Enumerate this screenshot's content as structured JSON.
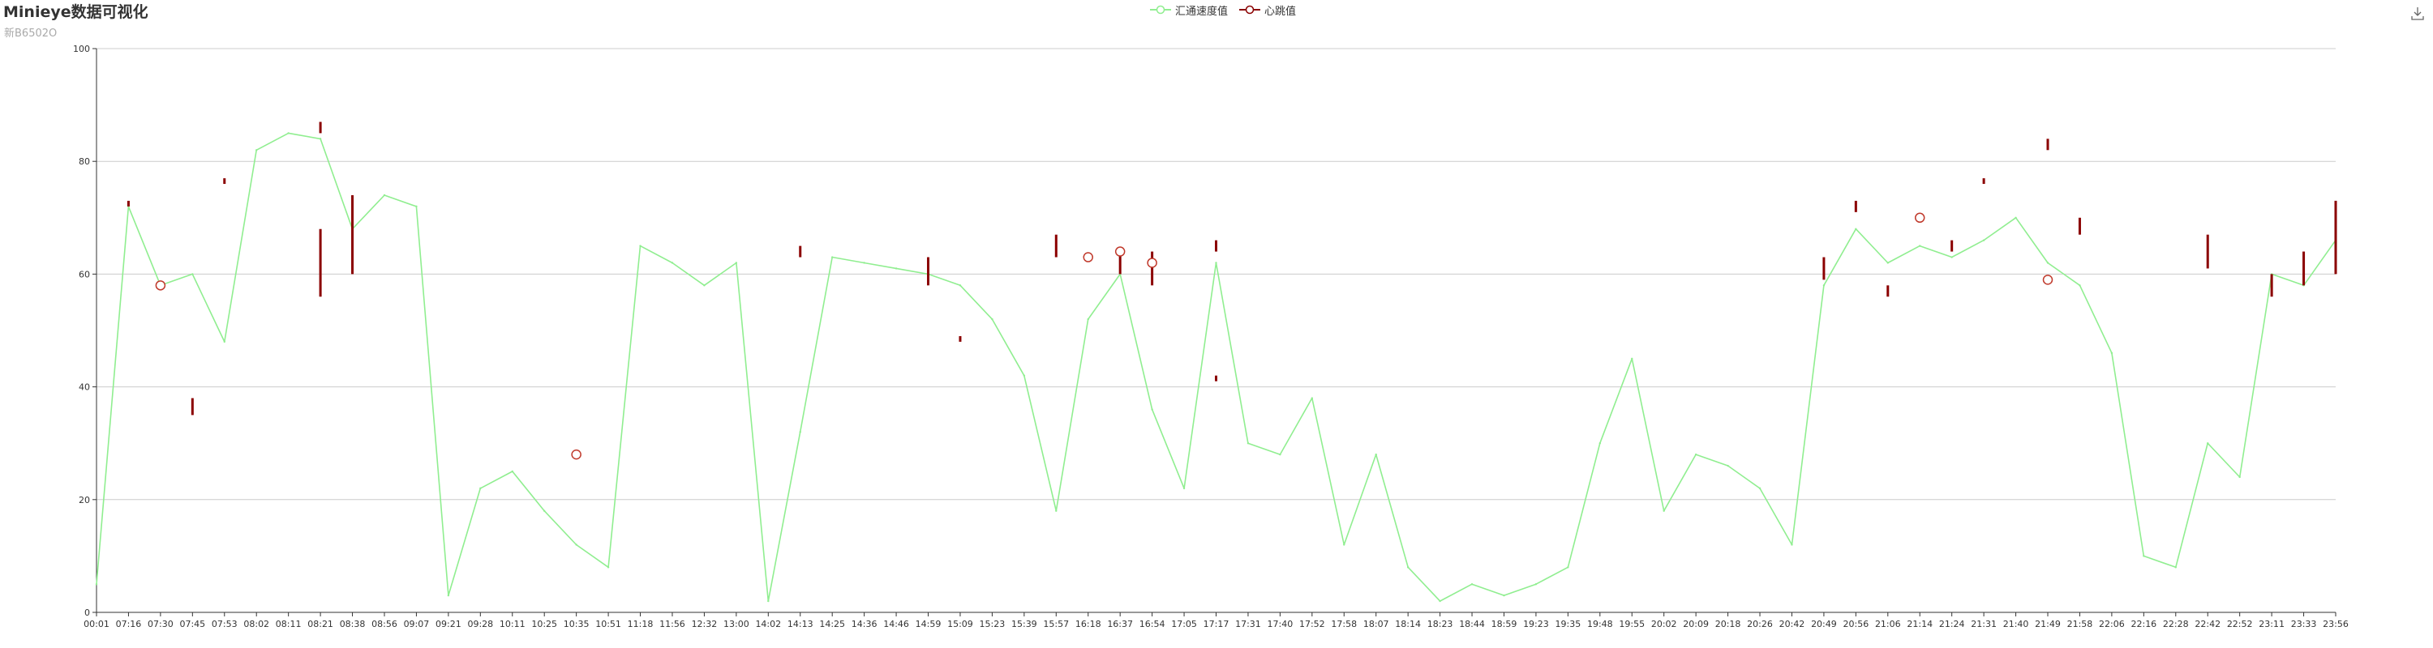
{
  "chart_data": {
    "type": "line",
    "title": "Minieye数据可视化",
    "subtitle": "新B6502O",
    "xlabel": "",
    "ylabel": "",
    "ylim": [
      0,
      100
    ],
    "yticks": [
      0,
      20,
      40,
      60,
      80,
      100
    ],
    "grid": true,
    "legend_position": "top-center",
    "categories": [
      "00:01",
      "07:16",
      "07:30",
      "07:45",
      "07:53",
      "08:02",
      "08:11",
      "08:21",
      "08:38",
      "08:56",
      "09:07",
      "09:21",
      "09:28",
      "10:11",
      "10:25",
      "10:35",
      "10:51",
      "11:18",
      "11:56",
      "12:32",
      "13:00",
      "14:02",
      "14:13",
      "14:25",
      "14:36",
      "14:46",
      "14:59",
      "15:09",
      "15:23",
      "15:39",
      "15:57",
      "16:18",
      "16:37",
      "16:54",
      "17:05",
      "17:17",
      "17:31",
      "17:40",
      "17:52",
      "17:58",
      "18:07",
      "18:14",
      "18:23",
      "18:44",
      "18:59",
      "19:23",
      "19:35",
      "19:48",
      "19:55",
      "20:02",
      "20:09",
      "20:18",
      "20:26",
      "20:42",
      "20:49",
      "20:56",
      "21:06",
      "21:14",
      "21:24",
      "21:31",
      "21:40",
      "21:49",
      "21:58",
      "22:06",
      "22:16",
      "22:28",
      "22:42",
      "22:52",
      "23:11",
      "23:33",
      "23:56"
    ],
    "series": [
      {
        "name": "汇通速度值",
        "color": "#90ee90",
        "values": [
          5,
          72,
          58,
          60,
          48,
          82,
          85,
          84,
          68,
          74,
          72,
          3,
          22,
          25,
          18,
          12,
          8,
          65,
          62,
          58,
          62,
          2,
          32,
          63,
          62,
          61,
          60,
          58,
          52,
          42,
          18,
          52,
          60,
          36,
          22,
          62,
          30,
          28,
          38,
          12,
          28,
          8,
          2,
          5,
          3,
          5,
          8,
          30,
          45,
          18,
          28,
          26,
          22,
          12,
          58,
          68,
          62,
          65,
          63,
          66,
          70,
          62,
          58,
          46,
          10,
          8,
          30,
          24,
          60,
          58,
          66
        ]
      },
      {
        "name": "心跳值",
        "color": "#8b0000",
        "markers": [
          {
            "category": "07:30",
            "value": 58
          },
          {
            "category": "10:35",
            "value": 28
          },
          {
            "category": "16:18",
            "value": 63
          },
          {
            "category": "16:37",
            "value": 64
          },
          {
            "category": "16:54",
            "value": 62
          },
          {
            "category": "21:14",
            "value": 70
          },
          {
            "category": "21:49",
            "value": 59
          }
        ],
        "segments": [
          {
            "category": "07:16",
            "values": [
              72,
              73
            ]
          },
          {
            "category": "07:45",
            "values": [
              35,
              38
            ]
          },
          {
            "category": "07:53",
            "values": [
              76,
              77
            ]
          },
          {
            "category": "08:21",
            "values": [
              85,
              87
            ]
          },
          {
            "category": "08:21",
            "values": [
              56,
              68
            ]
          },
          {
            "category": "08:38",
            "values": [
              60,
              74
            ]
          },
          {
            "category": "14:13",
            "values": [
              63,
              65
            ]
          },
          {
            "category": "14:59",
            "values": [
              58,
              63
            ]
          },
          {
            "category": "15:09",
            "values": [
              48,
              49
            ]
          },
          {
            "category": "15:57",
            "values": [
              63,
              67
            ]
          },
          {
            "category": "16:37",
            "values": [
              60,
              64
            ]
          },
          {
            "category": "16:54",
            "values": [
              58,
              64
            ]
          },
          {
            "category": "17:17",
            "values": [
              41,
              42
            ]
          },
          {
            "category": "17:17",
            "values": [
              64,
              66
            ]
          },
          {
            "category": "20:49",
            "values": [
              59,
              63
            ]
          },
          {
            "category": "20:56",
            "values": [
              71,
              73
            ]
          },
          {
            "category": "21:06",
            "values": [
              56,
              58
            ]
          },
          {
            "category": "21:24",
            "values": [
              64,
              66
            ]
          },
          {
            "category": "21:31",
            "values": [
              76,
              77
            ]
          },
          {
            "category": "21:49",
            "values": [
              82,
              84
            ]
          },
          {
            "category": "21:58",
            "values": [
              67,
              70
            ]
          },
          {
            "category": "22:42",
            "values": [
              61,
              67
            ]
          },
          {
            "category": "23:11",
            "values": [
              56,
              60
            ]
          },
          {
            "category": "23:33",
            "values": [
              58,
              64
            ]
          },
          {
            "category": "23:56",
            "values": [
              60,
              73
            ]
          }
        ]
      }
    ]
  },
  "toolbar": {
    "save_icon": "download-icon"
  }
}
